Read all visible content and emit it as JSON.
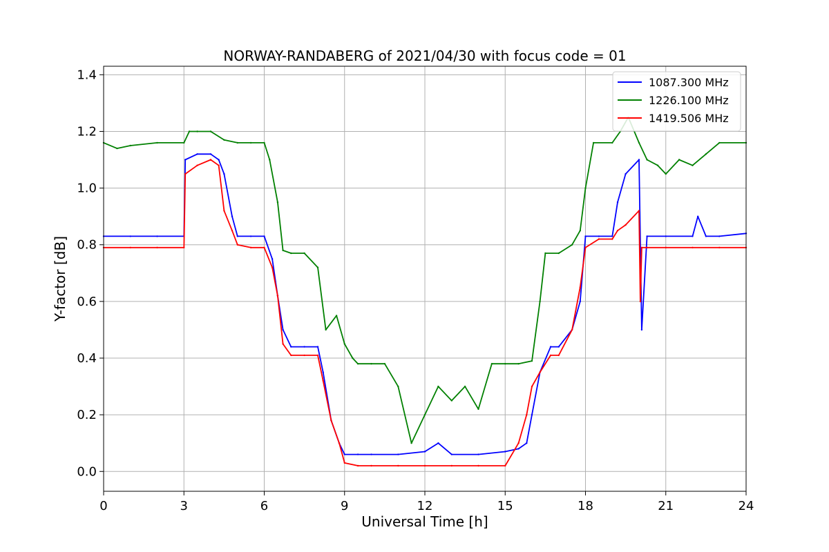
{
  "chart_data": {
    "type": "line",
    "title": "NORWAY-RANDABERG of 2021/04/30 with focus code = 01",
    "xlabel": "Universal Time [h]",
    "ylabel": "Y-factor [dB]",
    "xlim": [
      0,
      24
    ],
    "ylim": [
      -0.07,
      1.43
    ],
    "xticks": [
      0,
      3,
      6,
      9,
      12,
      15,
      18,
      21,
      24
    ],
    "xtick_labels": [
      "0",
      "3",
      "6",
      "9",
      "12",
      "15",
      "18",
      "21",
      "24"
    ],
    "yticks": [
      0.0,
      0.2,
      0.4,
      0.6,
      0.8,
      1.0,
      1.2,
      1.4
    ],
    "ytick_labels": [
      "0.0",
      "0.2",
      "0.4",
      "0.6",
      "0.8",
      "1.0",
      "1.2",
      "1.4"
    ],
    "grid": true,
    "legend_position": "top-right",
    "series": [
      {
        "name": "1087.300 MHz",
        "color": "#0000ff",
        "x": [
          0,
          1,
          2,
          3.0,
          3.05,
          3.5,
          4.0,
          4.3,
          4.5,
          4.8,
          5.0,
          5.5,
          6.0,
          6.3,
          6.5,
          6.7,
          7.0,
          7.5,
          8.0,
          8.2,
          8.5,
          8.8,
          9.0,
          9.5,
          10,
          11,
          12,
          12.5,
          13,
          14,
          15,
          15.5,
          15.8,
          16.0,
          16.3,
          16.7,
          17.0,
          17.5,
          17.8,
          18.0,
          18.5,
          19.0,
          19.2,
          19.5,
          20.0,
          20.1,
          20.3,
          21,
          22,
          22.2,
          22.5,
          23,
          24
        ],
        "y": [
          0.83,
          0.83,
          0.83,
          0.83,
          1.1,
          1.12,
          1.12,
          1.1,
          1.05,
          0.9,
          0.83,
          0.83,
          0.83,
          0.75,
          0.62,
          0.5,
          0.44,
          0.44,
          0.44,
          0.35,
          0.18,
          0.1,
          0.06,
          0.06,
          0.06,
          0.06,
          0.07,
          0.1,
          0.06,
          0.06,
          0.07,
          0.08,
          0.1,
          0.2,
          0.35,
          0.44,
          0.44,
          0.5,
          0.6,
          0.83,
          0.83,
          0.83,
          0.95,
          1.05,
          1.1,
          0.5,
          0.83,
          0.83,
          0.83,
          0.9,
          0.83,
          0.83,
          0.84
        ]
      },
      {
        "name": "1226.100 MHz",
        "color": "#008000",
        "x": [
          0,
          0.5,
          1,
          2,
          3.0,
          3.2,
          3.5,
          4.0,
          4.5,
          5.0,
          5.5,
          6.0,
          6.2,
          6.5,
          6.7,
          7.0,
          7.5,
          8.0,
          8.3,
          8.7,
          9.0,
          9.3,
          9.5,
          10,
          10.5,
          11,
          11.5,
          12,
          12.5,
          13,
          13.5,
          14,
          14.5,
          15,
          15.5,
          16.0,
          16.3,
          16.5,
          17.0,
          17.5,
          17.8,
          18.0,
          18.3,
          19.0,
          19.3,
          19.6,
          20.0,
          20.3,
          20.7,
          21,
          21.5,
          22,
          22.5,
          23,
          24
        ],
        "y": [
          1.16,
          1.14,
          1.15,
          1.16,
          1.16,
          1.2,
          1.2,
          1.2,
          1.17,
          1.16,
          1.16,
          1.16,
          1.1,
          0.95,
          0.78,
          0.77,
          0.77,
          0.72,
          0.5,
          0.55,
          0.45,
          0.4,
          0.38,
          0.38,
          0.38,
          0.3,
          0.1,
          0.2,
          0.3,
          0.25,
          0.3,
          0.22,
          0.38,
          0.38,
          0.38,
          0.39,
          0.6,
          0.77,
          0.77,
          0.8,
          0.85,
          1.0,
          1.16,
          1.16,
          1.2,
          1.25,
          1.16,
          1.1,
          1.08,
          1.05,
          1.1,
          1.08,
          1.12,
          1.16,
          1.16
        ]
      },
      {
        "name": "1419.506 MHz",
        "color": "#ff0000",
        "x": [
          0,
          1,
          2,
          3.0,
          3.05,
          3.5,
          4.0,
          4.3,
          4.5,
          4.8,
          5.0,
          5.5,
          6.0,
          6.3,
          6.5,
          6.7,
          7.0,
          7.5,
          8.0,
          8.2,
          8.5,
          8.8,
          9.0,
          9.5,
          10,
          11,
          12,
          13,
          14,
          15,
          15.5,
          15.8,
          16.0,
          16.3,
          16.7,
          17.0,
          17.5,
          17.8,
          18.0,
          18.5,
          19.0,
          19.2,
          19.5,
          20.0,
          20.05,
          20.1,
          20.3,
          21,
          22,
          23,
          24
        ],
        "y": [
          0.79,
          0.79,
          0.79,
          0.79,
          1.05,
          1.08,
          1.1,
          1.08,
          0.92,
          0.85,
          0.8,
          0.79,
          0.79,
          0.72,
          0.62,
          0.45,
          0.41,
          0.41,
          0.41,
          0.32,
          0.18,
          0.1,
          0.03,
          0.02,
          0.02,
          0.02,
          0.02,
          0.02,
          0.02,
          0.02,
          0.1,
          0.2,
          0.3,
          0.35,
          0.41,
          0.41,
          0.5,
          0.65,
          0.79,
          0.82,
          0.82,
          0.85,
          0.87,
          0.92,
          0.6,
          0.79,
          0.79,
          0.79,
          0.79,
          0.79,
          0.79
        ]
      }
    ]
  }
}
